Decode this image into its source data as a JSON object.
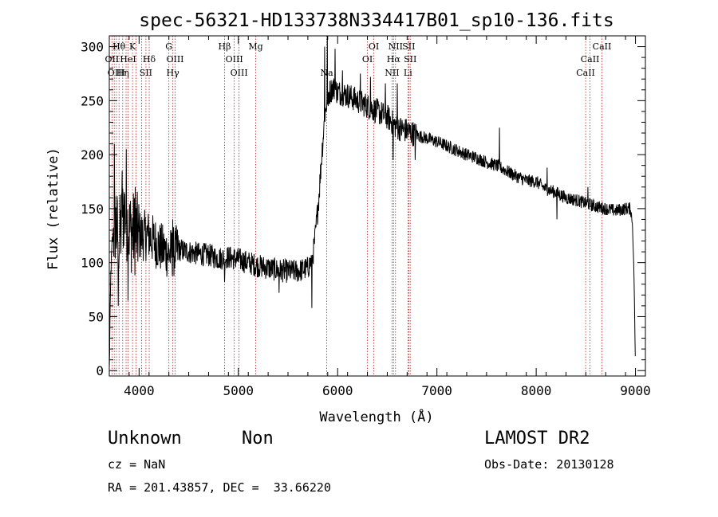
{
  "chart_data": {
    "type": "line",
    "title": "spec-56321-HD133738N334417B01_sp10-136.fits",
    "xlabel": "Wavelength (Å)",
    "ylabel": "Flux (relative)",
    "xlim": [
      3700,
      9100
    ],
    "ylim": [
      -5,
      310
    ],
    "xticks": [
      4000,
      5000,
      6000,
      7000,
      8000,
      9000
    ],
    "yticks": [
      0,
      50,
      100,
      150,
      200,
      250,
      300
    ],
    "grid": false,
    "series": [
      {
        "color": "#000000",
        "anchors": [
          [
            3700,
            0
          ],
          [
            3715,
            90
          ],
          [
            3730,
            120
          ],
          [
            3760,
            135
          ],
          [
            3800,
            120
          ],
          [
            3850,
            150
          ],
          [
            3900,
            130
          ],
          [
            4000,
            125
          ],
          [
            4100,
            125
          ],
          [
            4200,
            115
          ],
          [
            4300,
            108
          ],
          [
            4400,
            112
          ],
          [
            4500,
            110
          ],
          [
            4600,
            108
          ],
          [
            4700,
            107
          ],
          [
            4800,
            104
          ],
          [
            4900,
            105
          ],
          [
            5000,
            103
          ],
          [
            5100,
            100
          ],
          [
            5200,
            97
          ],
          [
            5300,
            95
          ],
          [
            5400,
            93
          ],
          [
            5500,
            92
          ],
          [
            5600,
            92
          ],
          [
            5700,
            95
          ],
          [
            5750,
            105
          ],
          [
            5780,
            130
          ],
          [
            5810,
            160
          ],
          [
            5840,
            200
          ],
          [
            5870,
            235
          ],
          [
            5900,
            255
          ],
          [
            5950,
            262
          ],
          [
            6000,
            258
          ],
          [
            6100,
            255
          ],
          [
            6200,
            250
          ],
          [
            6300,
            245
          ],
          [
            6400,
            240
          ],
          [
            6500,
            235
          ],
          [
            6600,
            225
          ],
          [
            6700,
            222
          ],
          [
            6800,
            218
          ],
          [
            6900,
            215
          ],
          [
            7000,
            212
          ],
          [
            7100,
            208
          ],
          [
            7200,
            204
          ],
          [
            7300,
            200
          ],
          [
            7400,
            197
          ],
          [
            7500,
            193
          ],
          [
            7600,
            190
          ],
          [
            7700,
            185
          ],
          [
            7800,
            180
          ],
          [
            7900,
            176
          ],
          [
            8000,
            175
          ],
          [
            8100,
            168
          ],
          [
            8200,
            165
          ],
          [
            8300,
            160
          ],
          [
            8400,
            158
          ],
          [
            8500,
            155
          ],
          [
            8600,
            152
          ],
          [
            8700,
            150
          ],
          [
            8800,
            148
          ],
          [
            8900,
            150
          ],
          [
            8950,
            150
          ],
          [
            8970,
            135
          ],
          [
            8985,
            90
          ],
          [
            9000,
            0
          ]
        ],
        "spikes": [
          [
            3750,
            210
          ],
          [
            3790,
            60
          ],
          [
            3830,
            185
          ],
          [
            3870,
            205
          ],
          [
            3890,
            65
          ],
          [
            3960,
            170
          ],
          [
            4340,
            140
          ],
          [
            4860,
            82
          ],
          [
            5410,
            72
          ],
          [
            5740,
            58
          ],
          [
            5870,
            300
          ],
          [
            5895,
            310
          ],
          [
            5905,
            245
          ],
          [
            5975,
            298
          ],
          [
            6050,
            278
          ],
          [
            6230,
            275
          ],
          [
            6330,
            272
          ],
          [
            6480,
            266
          ],
          [
            6560,
            195
          ],
          [
            6600,
            266
          ],
          [
            6780,
            195
          ],
          [
            7630,
            225
          ],
          [
            8110,
            188
          ],
          [
            8210,
            140
          ],
          [
            8520,
            170
          ]
        ]
      }
    ],
    "lines": {
      "color": "#b22222",
      "positions": [
        3727,
        3750,
        3771,
        3798,
        3835,
        3869,
        3889,
        3934,
        3969,
        4026,
        4069,
        4102,
        4300,
        4340,
        4363,
        4861,
        4959,
        5007,
        5175,
        5890,
        6300,
        6364,
        6548,
        6563,
        6583,
        6708,
        6716,
        6731,
        8498,
        8542,
        8662
      ],
      "labels": [
        {
          "text": "Hθ",
          "x": 3798,
          "row": 0
        },
        {
          "text": "K",
          "x": 3934,
          "row": 0
        },
        {
          "text": "G",
          "x": 4300,
          "row": 0
        },
        {
          "text": "Hβ",
          "x": 4861,
          "row": 0
        },
        {
          "text": "Mg",
          "x": 5175,
          "row": 0
        },
        {
          "text": "OI",
          "x": 6364,
          "row": 0
        },
        {
          "text": "NII",
          "x": 6583,
          "row": 0
        },
        {
          "text": "SII",
          "x": 6716,
          "row": 0
        },
        {
          "text": "CaII",
          "x": 8662,
          "row": 0
        },
        {
          "text": "OII",
          "x": 3727,
          "row": 1
        },
        {
          "text": "HeI",
          "x": 3889,
          "row": 1
        },
        {
          "text": "Hδ",
          "x": 4102,
          "row": 1
        },
        {
          "text": "OIII",
          "x": 4363,
          "row": 1
        },
        {
          "text": "OIII",
          "x": 4959,
          "row": 1
        },
        {
          "text": "OI",
          "x": 6300,
          "row": 1
        },
        {
          "text": "Hα",
          "x": 6563,
          "row": 1
        },
        {
          "text": "SII",
          "x": 6731,
          "row": 1
        },
        {
          "text": "CaII",
          "x": 8542,
          "row": 1
        },
        {
          "text": "OIII",
          "x": 3771,
          "row": 2
        },
        {
          "text": "Hη",
          "x": 3835,
          "row": 2
        },
        {
          "text": "SII",
          "x": 4069,
          "row": 2
        },
        {
          "text": "Hγ",
          "x": 4340,
          "row": 2
        },
        {
          "text": "OIII",
          "x": 5007,
          "row": 2
        },
        {
          "text": "Na",
          "x": 5890,
          "row": 2
        },
        {
          "text": "NII",
          "x": 6548,
          "row": 2
        },
        {
          "text": "Li",
          "x": 6708,
          "row": 2
        },
        {
          "text": "CaII",
          "x": 8498,
          "row": 2
        }
      ]
    }
  },
  "info": {
    "class_name": "Unknown",
    "subclass": "Non",
    "survey": "LAMOST DR2",
    "redshift": "cz = NaN",
    "obs_date": "Obs-Date: 20130128",
    "coords": "RA = 201.43857, DEC =  33.66220"
  }
}
